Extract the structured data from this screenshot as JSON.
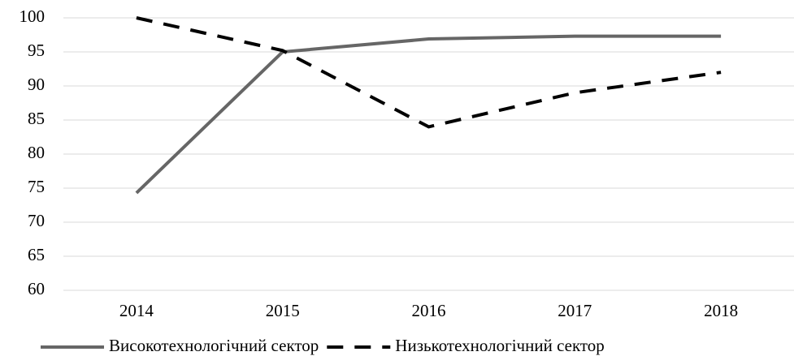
{
  "chart_data": {
    "type": "line",
    "categories": [
      "2014",
      "2015",
      "2016",
      "2017",
      "2018"
    ],
    "series": [
      {
        "name": "Високотехнологічний сектор",
        "color": "#666666",
        "line_style": "solid",
        "values": [
          74.3,
          95,
          96.9,
          97.3,
          97.3
        ]
      },
      {
        "name": "Низькотехнологічний сектор",
        "color": "#000000",
        "line_style": "dashed",
        "values": [
          100,
          95.2,
          84,
          89,
          92
        ]
      }
    ],
    "ylim": [
      60,
      100
    ],
    "yticks": [
      60,
      65,
      70,
      75,
      80,
      85,
      90,
      95,
      100
    ],
    "grid": true,
    "legend": "bottom"
  }
}
